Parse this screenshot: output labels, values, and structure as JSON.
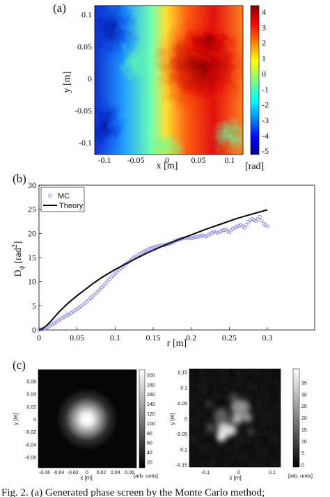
{
  "panel_a": {
    "label": "(a)",
    "ylabel": "y [m]",
    "xlabel": "x [m]",
    "unit": "[rad]",
    "xticks": [
      "-0.1",
      "-0.05",
      "0",
      "0.05",
      "0.1"
    ],
    "yticks": [
      "0.1",
      "0.05",
      "0",
      "-0.05",
      "-0.1"
    ],
    "colorbar_ticks": [
      "4",
      "3",
      "2",
      "1",
      "0",
      "-1",
      "-2",
      "-3",
      "-4",
      "-5"
    ]
  },
  "panel_b": {
    "label": "(b)",
    "ylabel": "D",
    "ylabel_sub": "φ",
    "ylabel_unit": "[rad",
    "ylabel_exp": "2",
    "ylabel_close": "]",
    "xlabel": "r [m]",
    "xticks": [
      "0",
      "0.05",
      "0.1",
      "0.15",
      "0.2",
      "0.25",
      "0.3"
    ],
    "yticks": [
      "0",
      "5",
      "10",
      "15",
      "20",
      "25",
      "30"
    ],
    "legend": [
      "MC",
      "Theory"
    ]
  },
  "panel_c": {
    "label": "(c)",
    "left": {
      "ylabel": "y [m]",
      "xlabel": "x [m]",
      "unit": "[arb. units]",
      "xticks": [
        "-0.06",
        "-0.04",
        "-0.02",
        "0",
        "0.02",
        "0.04",
        "0.06"
      ],
      "yticks": [
        "0.06",
        "0.04",
        "0.02",
        "0",
        "-0.02",
        "-0.04",
        "-0.06"
      ],
      "colorbar_ticks": [
        "200",
        "180",
        "160",
        "140",
        "120",
        "100",
        "80",
        "60",
        "40",
        "20"
      ]
    },
    "right": {
      "ylabel": "y [m]",
      "xlabel": "x [m]",
      "unit": "[arb. units]",
      "xticks": [
        "-0.1",
        "0",
        "0.1"
      ],
      "yticks": [
        "0.15",
        "0.1",
        "0.05",
        "0",
        "-0.05",
        "-0.1",
        "-0.15"
      ],
      "colorbar_ticks": [
        "35",
        "30",
        "25",
        "20",
        "15",
        "10",
        "5",
        "0"
      ]
    }
  },
  "caption": "Fig. 2.   (a) Generated phase screen by the Monte Carlo method;",
  "chart_data": [
    {
      "type": "heatmap",
      "panel": "a",
      "xlim": [
        -0.125,
        0.125
      ],
      "ylim": [
        -0.12,
        0.12
      ],
      "zlim": [
        -5,
        4.5
      ],
      "colormap": "jet",
      "description_values": "phase in rad; low values (-4 to -5) on the left edge, high values (3 to 4) centered near x=0.05, y=0"
    },
    {
      "type": "scatter",
      "panel": "b",
      "xlim": [
        0,
        0.3
      ],
      "ylim": [
        0,
        30
      ],
      "series": [
        {
          "name": "MC",
          "marker": "circle",
          "color": "#7b7fe0",
          "x": [
            0.0,
            0.005,
            0.01,
            0.015,
            0.02,
            0.025,
            0.03,
            0.035,
            0.04,
            0.045,
            0.05,
            0.055,
            0.06,
            0.065,
            0.07,
            0.075,
            0.08,
            0.085,
            0.09,
            0.095,
            0.1,
            0.105,
            0.11,
            0.115,
            0.12,
            0.125,
            0.13,
            0.135,
            0.14,
            0.145,
            0.15,
            0.155,
            0.16,
            0.165,
            0.17,
            0.175,
            0.18,
            0.185,
            0.19,
            0.195,
            0.2,
            0.205,
            0.21,
            0.215,
            0.22,
            0.225,
            0.23,
            0.235,
            0.24,
            0.245,
            0.25,
            0.255,
            0.26,
            0.265,
            0.27,
            0.275,
            0.28,
            0.285,
            0.29,
            0.295,
            0.3
          ],
          "y": [
            0.0,
            0.2,
            0.5,
            0.9,
            1.4,
            1.9,
            2.4,
            2.9,
            3.3,
            3.8,
            4.3,
            4.9,
            5.5,
            6.2,
            6.9,
            7.6,
            8.4,
            9.2,
            10.1,
            10.9,
            11.7,
            12.4,
            13.1,
            13.8,
            14.4,
            15.0,
            15.5,
            16.0,
            16.4,
            16.8,
            17.1,
            17.3,
            17.5,
            17.6,
            17.8,
            18.1,
            18.5,
            18.8,
            19.0,
            19.1,
            19.0,
            19.2,
            19.4,
            19.6,
            19.4,
            19.9,
            20.4,
            20.1,
            20.6,
            20.8,
            20.3,
            21.0,
            21.4,
            21.8,
            21.2,
            22.4,
            23.0,
            22.6,
            23.4,
            22.0,
            21.5
          ]
        },
        {
          "name": "Theory",
          "marker": "line",
          "color": "#000000",
          "x": [
            0.0,
            0.005,
            0.01,
            0.015,
            0.02,
            0.025,
            0.03,
            0.04,
            0.05,
            0.06,
            0.07,
            0.08,
            0.09,
            0.1,
            0.12,
            0.14,
            0.16,
            0.18,
            0.2,
            0.22,
            0.24,
            0.26,
            0.28,
            0.3
          ],
          "y": [
            0.0,
            0.3,
            0.9,
            1.7,
            2.6,
            3.5,
            4.3,
            5.8,
            7.1,
            8.3,
            9.5,
            10.6,
            11.6,
            12.5,
            14.2,
            15.8,
            17.2,
            18.5,
            19.7,
            20.9,
            22.0,
            23.1,
            24.0,
            24.9
          ]
        }
      ]
    },
    {
      "type": "heatmap",
      "panel": "c-left",
      "xlim": [
        -0.065,
        0.065
      ],
      "ylim": [
        -0.07,
        0.07
      ],
      "zlim": [
        15,
        215
      ],
      "colormap": "gray"
    },
    {
      "type": "heatmap",
      "panel": "c-right",
      "xlim": [
        -0.15,
        0.15
      ],
      "ylim": [
        -0.15,
        0.15
      ],
      "zlim": [
        0,
        40
      ],
      "colormap": "gray"
    }
  ]
}
